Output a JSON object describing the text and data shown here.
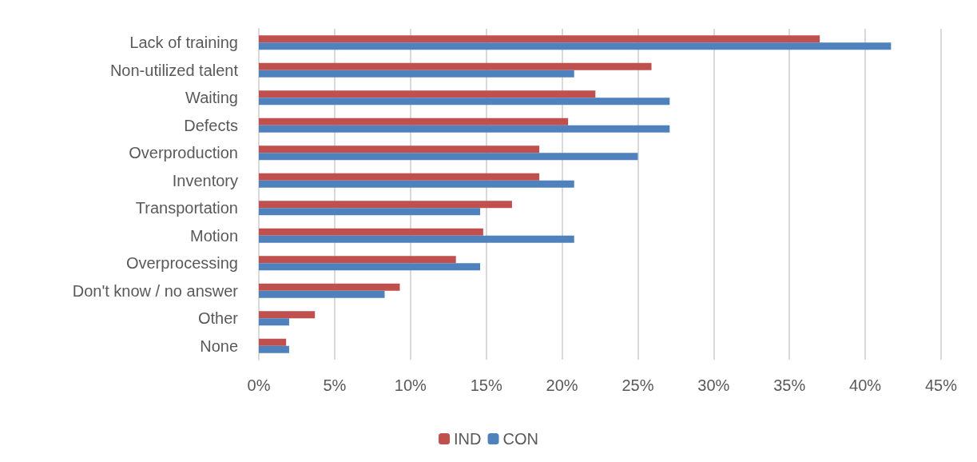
{
  "chart_data": {
    "type": "bar",
    "orientation": "horizontal",
    "categories": [
      "Lack of training",
      "Non-utilized talent",
      "Waiting",
      "Defects",
      "Overproduction",
      "Inventory",
      "Transportation",
      "Motion",
      "Overprocessing",
      "Don't know / no answer",
      "Other",
      "None"
    ],
    "series": [
      {
        "name": "IND",
        "color": "#c0504d",
        "values": [
          37.0,
          25.9,
          22.2,
          20.4,
          18.5,
          18.5,
          16.7,
          14.8,
          13.0,
          9.3,
          3.7,
          1.8
        ]
      },
      {
        "name": "CON",
        "color": "#4f81bd",
        "values": [
          41.7,
          20.8,
          27.1,
          27.1,
          25.0,
          20.8,
          14.6,
          20.8,
          14.6,
          8.3,
          2.0,
          2.0
        ]
      }
    ],
    "xlim": [
      0,
      45
    ],
    "xticks": [
      {
        "value": 0,
        "label": "0%"
      },
      {
        "value": 5,
        "label": "5%"
      },
      {
        "value": 10,
        "label": "10%"
      },
      {
        "value": 15,
        "label": "15%"
      },
      {
        "value": 20,
        "label": "20%"
      },
      {
        "value": 25,
        "label": "25%"
      },
      {
        "value": 30,
        "label": "30%"
      },
      {
        "value": 35,
        "label": "35%"
      },
      {
        "value": 40,
        "label": "40%"
      },
      {
        "value": 45,
        "label": "45%"
      }
    ],
    "grid": "x",
    "legend": "bottom"
  }
}
